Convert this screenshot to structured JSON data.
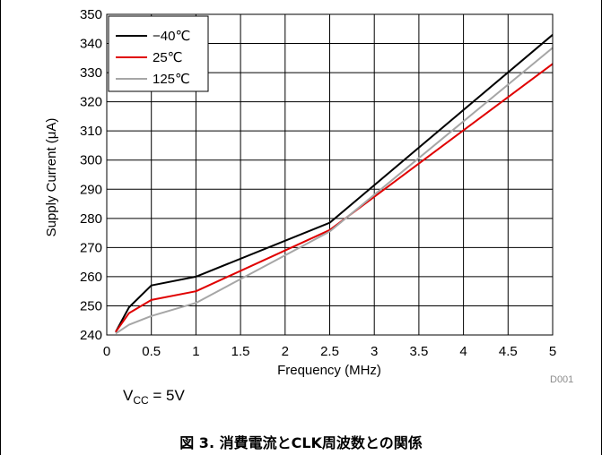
{
  "chart_data": {
    "type": "line",
    "title": "",
    "xlabel": "Frequency (MHz)",
    "ylabel": "Supply Current (μA)",
    "xlim": [
      0,
      5
    ],
    "ylim": [
      240,
      350
    ],
    "xticks": [
      "0",
      "0.5",
      "1",
      "1.5",
      "2",
      "2.5",
      "3",
      "3.5",
      "4",
      "4.5",
      "5"
    ],
    "yticks": [
      "240",
      "250",
      "260",
      "270",
      "280",
      "290",
      "300",
      "310",
      "320",
      "330",
      "340",
      "350"
    ],
    "grid": true,
    "legend_position": "top-left",
    "series": [
      {
        "name": "−40℃",
        "color": "#000000",
        "x": [
          0.1,
          0.25,
          0.5,
          1,
          2.5,
          5
        ],
        "y": [
          241,
          249.5,
          257,
          260,
          278.5,
          343
        ]
      },
      {
        "name": "25℃",
        "color": "#e00000",
        "x": [
          0.1,
          0.25,
          0.5,
          1,
          2.5,
          5
        ],
        "y": [
          241,
          247.5,
          252,
          255,
          276,
          333
        ]
      },
      {
        "name": "125℃",
        "color": "#a6a6a6",
        "x": [
          0.1,
          0.25,
          0.5,
          1,
          2.5,
          5
        ],
        "y": [
          240.5,
          243.5,
          246.5,
          251,
          275.5,
          338.5
        ]
      }
    ]
  },
  "figure_id": "D001",
  "condition": {
    "label": "V",
    "sub": "CC",
    "value": " = 5V"
  },
  "caption": "図 3. 消費電流とCLK周波数との関係"
}
